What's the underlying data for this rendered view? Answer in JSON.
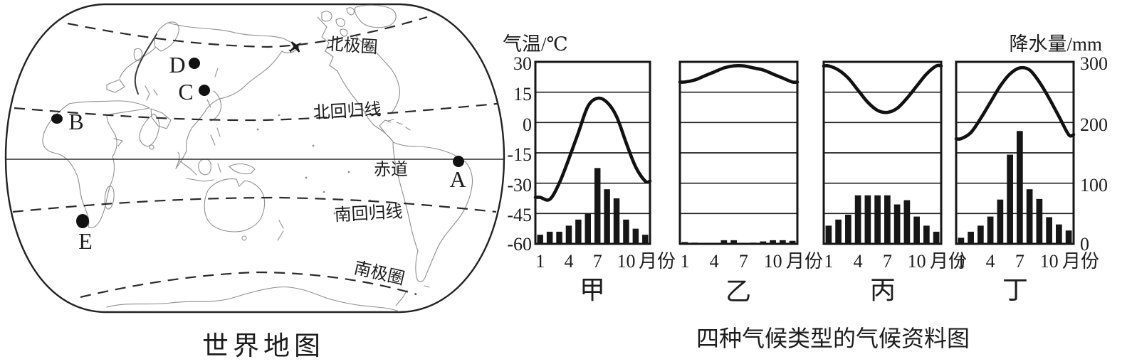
{
  "map": {
    "caption": "世界地图",
    "latitude_labels": [
      "北极圈",
      "北回归线",
      "赤道",
      "南回归线",
      "南极圈"
    ],
    "point_labels": [
      "A",
      "B",
      "C",
      "D",
      "E"
    ]
  },
  "charts": {
    "caption": "四种气候类型的气候资料图",
    "temp_axis_title": "气温/℃",
    "precip_axis_title": "降水量/mm",
    "temp_ticks": [
      "30",
      "15",
      "0",
      "-15",
      "-30",
      "-45",
      "-60"
    ],
    "precip_ticks": [
      "300",
      "200",
      "100",
      "0"
    ],
    "month_tick_labels": [
      "1",
      "4",
      "7",
      "10"
    ],
    "month_tick_positions": [
      1,
      4,
      7,
      10
    ],
    "month_axis_unit": "月份"
  },
  "chart_data": [
    {
      "type": "climograph-line-bar",
      "name": "甲",
      "months": [
        1,
        2,
        3,
        4,
        5,
        6,
        7,
        8,
        9,
        10,
        11,
        12
      ],
      "temperature_c": [
        -37,
        -38,
        -30,
        -18,
        -5,
        8,
        12,
        10,
        3,
        -10,
        -22,
        -29
      ],
      "precipitation_mm": [
        15,
        20,
        20,
        30,
        40,
        50,
        125,
        90,
        75,
        40,
        25,
        15
      ],
      "temp_axis_range": [
        -60,
        30
      ],
      "precip_axis_range": [
        0,
        300
      ],
      "grid": true
    },
    {
      "type": "climograph-line-bar",
      "name": "乙",
      "months": [
        1,
        2,
        3,
        4,
        5,
        6,
        7,
        8,
        9,
        10,
        11,
        12
      ],
      "temperature_c": [
        20,
        21,
        23,
        25,
        27,
        28,
        28,
        27,
        26,
        24,
        22,
        20
      ],
      "precipitation_mm": [
        3,
        2,
        1,
        0,
        6,
        6,
        1,
        2,
        4,
        6,
        6,
        5
      ],
      "temp_axis_range": [
        -60,
        30
      ],
      "precip_axis_range": [
        0,
        300
      ],
      "grid": true
    },
    {
      "type": "climograph-line-bar",
      "name": "丙",
      "months": [
        1,
        2,
        3,
        4,
        5,
        6,
        7,
        8,
        9,
        10,
        11,
        12
      ],
      "temperature_c": [
        28,
        26,
        22,
        16,
        10,
        6,
        5,
        7,
        12,
        18,
        24,
        28
      ],
      "precipitation_mm": [
        30,
        40,
        48,
        80,
        80,
        80,
        80,
        65,
        72,
        45,
        30,
        20
      ],
      "temp_axis_range": [
        -60,
        30
      ],
      "precip_axis_range": [
        0,
        300
      ],
      "grid": true
    },
    {
      "type": "climograph-line-bar",
      "name": "丁",
      "months": [
        1,
        2,
        3,
        4,
        5,
        6,
        7,
        8,
        9,
        10,
        11,
        12
      ],
      "temperature_c": [
        -8,
        -5,
        2,
        10,
        18,
        24,
        27,
        26,
        20,
        12,
        3,
        -6
      ],
      "precipitation_mm": [
        10,
        20,
        30,
        45,
        73,
        147,
        186,
        90,
        74,
        44,
        32,
        22
      ],
      "temp_axis_range": [
        -60,
        30
      ],
      "precip_axis_range": [
        0,
        300
      ],
      "grid": true
    }
  ],
  "colors": {
    "ink": "#1d1d1d",
    "bar_fill": "#161616",
    "curve": "#111111",
    "coastline": "#8f8f8f",
    "paper": "#ffffff"
  }
}
